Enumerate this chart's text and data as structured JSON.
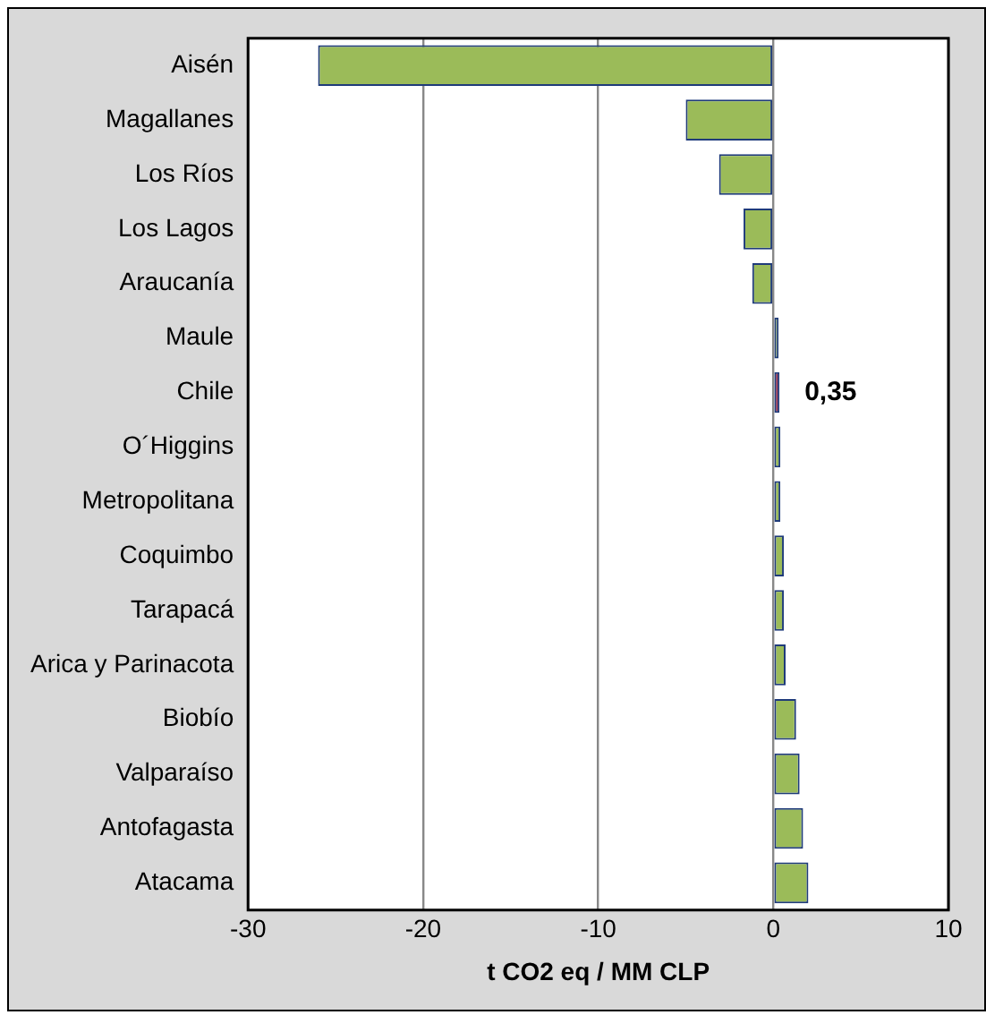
{
  "chart_data": {
    "type": "bar",
    "orientation": "horizontal",
    "xlabel": "t CO2 eq / MM CLP",
    "categories": [
      "Aisén",
      "Magallanes",
      "Los Ríos",
      "Los Lagos",
      "Araucanía",
      "Maule",
      "Chile",
      "O´Higgins",
      "Metropolitana",
      "Coquimbo",
      "Tarapacá",
      "Arica y Parinacota",
      "Biobío",
      "Valparaíso",
      "Antofagasta",
      "Atacama"
    ],
    "values": [
      -26,
      -5,
      -3.1,
      -1.7,
      -1.2,
      0.3,
      0.35,
      0.4,
      0.4,
      0.6,
      0.6,
      0.7,
      1.3,
      1.5,
      1.7,
      2
    ],
    "colors": [
      "#9bbb59",
      "#9bbb59",
      "#9bbb59",
      "#9bbb59",
      "#9bbb59",
      "#9bbb59",
      "#9b2d4a",
      "#9bbb59",
      "#9bbb59",
      "#9bbb59",
      "#9bbb59",
      "#9bbb59",
      "#9bbb59",
      "#9bbb59",
      "#9bbb59",
      "#9bbb59"
    ],
    "value_labels": [
      null,
      null,
      null,
      null,
      null,
      null,
      "0,35",
      null,
      null,
      null,
      null,
      null,
      null,
      null,
      null,
      null
    ],
    "xlim": [
      -30,
      10
    ],
    "xticks": [
      -30,
      -20,
      -10,
      0,
      10
    ],
    "grid": "x",
    "legend": false
  }
}
